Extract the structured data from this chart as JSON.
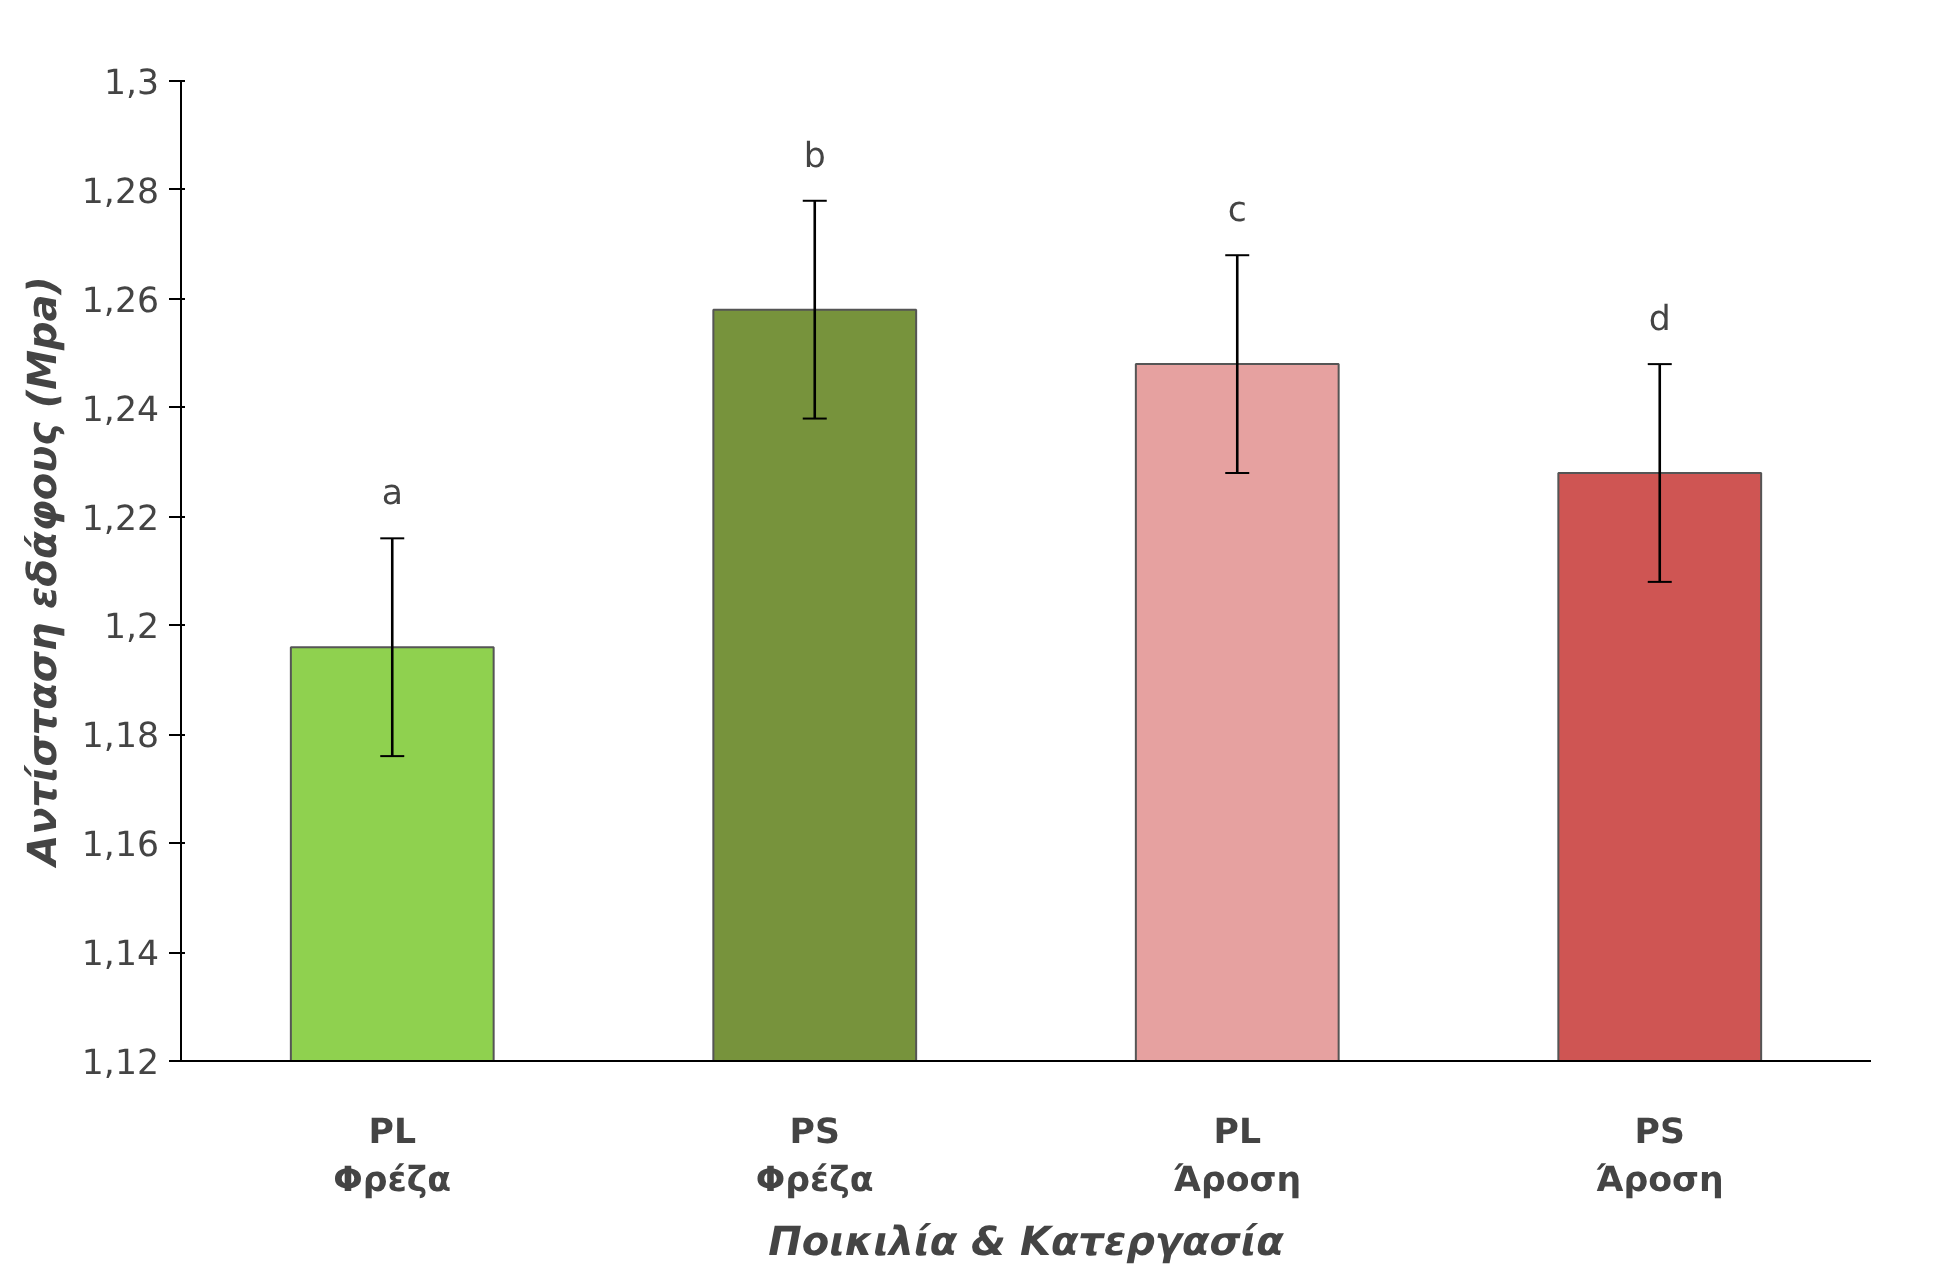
{
  "chart_data": {
    "type": "bar",
    "ylabel": "Αντίσταση εδάφους (Mpa)",
    "xlabel": "Ποικιλία & Κατεργασία",
    "categories": [
      "PL\nΦρέζα",
      "PS\nΦρέζα",
      "PL\nΆροση",
      "PS\nΆροση"
    ],
    "values": [
      1.196,
      1.258,
      1.248,
      1.228
    ],
    "colors": [
      "#8fd14f",
      "#77933c",
      "#e6a1a0",
      "#cf5553"
    ],
    "errors": [
      0.02,
      0.02,
      0.02,
      0.02
    ],
    "ylim": [
      1.12,
      1.3
    ],
    "yticks": [
      {
        "value": 1.12,
        "label": "1,12"
      },
      {
        "value": 1.14,
        "label": "1,14"
      },
      {
        "value": 1.16,
        "label": "1,16"
      },
      {
        "value": 1.18,
        "label": "1,18"
      },
      {
        "value": 1.2,
        "label": "1,2"
      },
      {
        "value": 1.22,
        "label": "1,22"
      },
      {
        "value": 1.24,
        "label": "1,24"
      },
      {
        "value": 1.26,
        "label": "1,26"
      },
      {
        "value": 1.28,
        "label": "1,28"
      },
      {
        "value": 1.3,
        "label": "1,3"
      }
    ],
    "annotations": [
      "a",
      "b",
      "c",
      "d"
    ],
    "grid": false
  }
}
